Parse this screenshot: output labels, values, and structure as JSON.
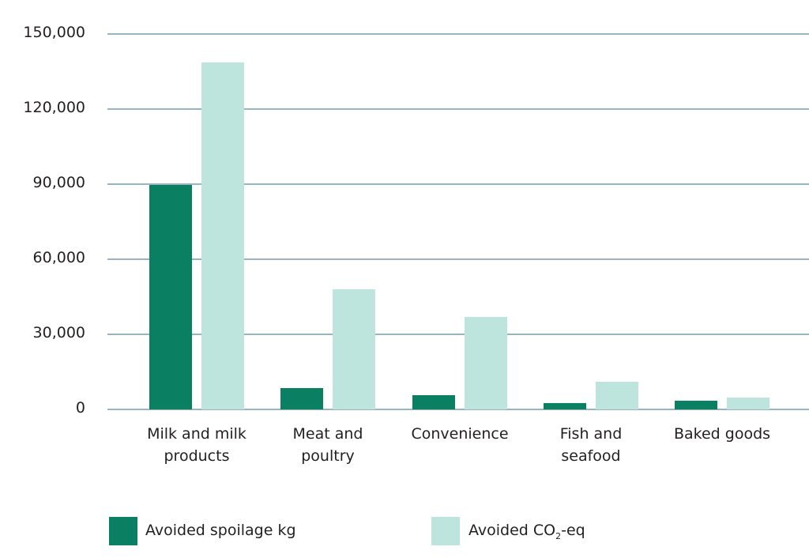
{
  "chart_data": {
    "type": "bar",
    "title": "",
    "xlabel": "",
    "ylabel": "",
    "ylim": [
      0,
      150000
    ],
    "yticks": [
      0,
      30000,
      60000,
      90000,
      120000,
      150000
    ],
    "ytick_labels": [
      "0",
      "30,000",
      "60,000",
      "90,000",
      "120,000",
      "150,000"
    ],
    "grid": true,
    "legend_position": "bottom",
    "categories": [
      "Milk and milk products",
      "Meat and poultry",
      "Convenience",
      "Fish and seafood",
      "Baked goods"
    ],
    "category_lines": [
      [
        "Milk and milk",
        "products"
      ],
      [
        "Meat and",
        "poultry"
      ],
      [
        "Convenience",
        ""
      ],
      [
        "Fish and",
        "seafood"
      ],
      [
        "Baked goods",
        ""
      ]
    ],
    "series": [
      {
        "name": "Avoided spoilage kg",
        "color": "#0b7f62",
        "values": [
          89700,
          8500,
          5700,
          2500,
          3500
        ]
      },
      {
        "name": "Avoided CO2-eq",
        "color": "#bde4dd",
        "values": [
          138600,
          48000,
          37000,
          11000,
          4700
        ]
      }
    ]
  },
  "legend": {
    "spoilage_label": "Avoided spoilage kg",
    "co2_prefix": "Avoided CO",
    "co2_sub": "2",
    "co2_suffix": "-eq"
  }
}
